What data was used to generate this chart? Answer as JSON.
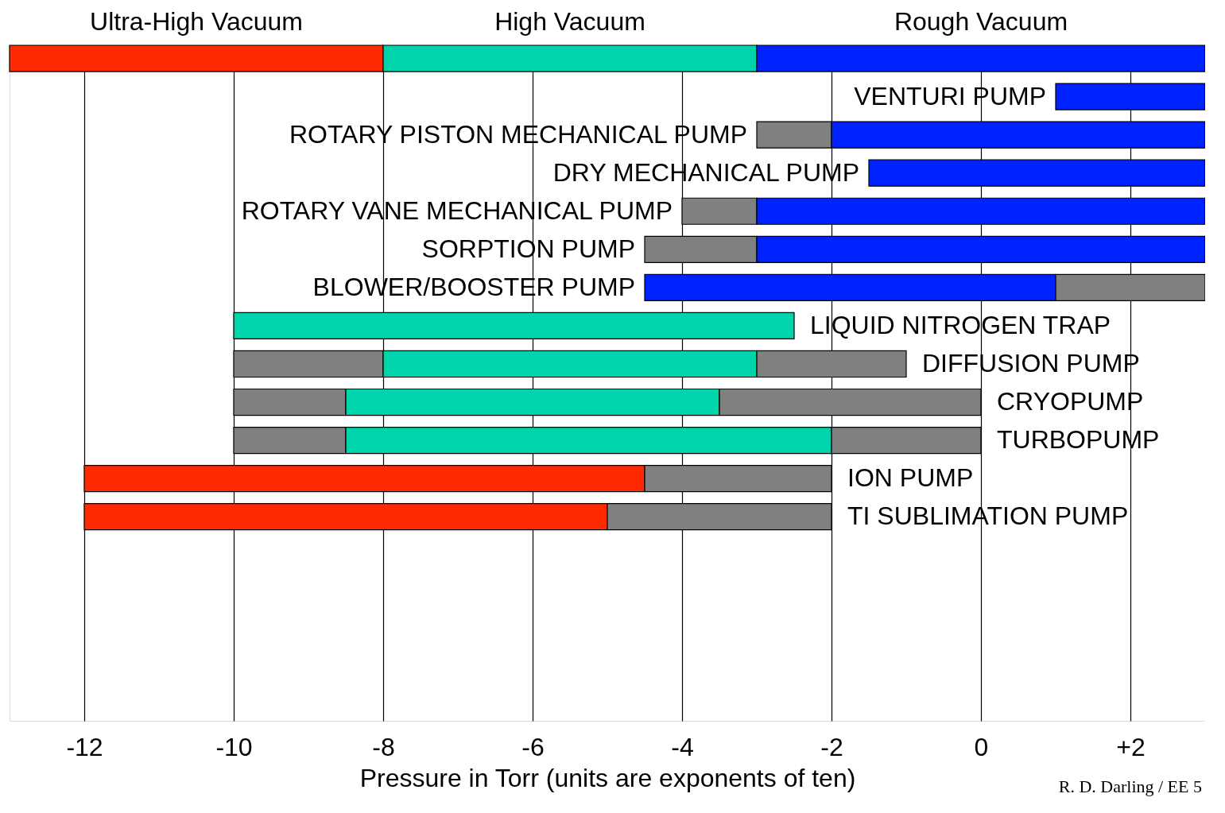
{
  "chart_data": {
    "type": "bar",
    "orientation": "horizontal",
    "xlabel": "Pressure in Torr (units are exponents of ten)",
    "categories": [
      null,
      "VENTURI PUMP",
      "ROTARY PISTON MECHANICAL PUMP",
      "DRY MECHANICAL PUMP",
      "ROTARY VANE MECHANICAL PUMP",
      "SORPTION PUMP",
      "BLOWER/BOOSTER PUMP",
      "LIQUID NITROGEN TRAP",
      "DIFFUSION PUMP",
      "CRYOPUMP",
      "TURBOPUMP",
      "ION PUMP",
      "TI SUBLIMATION PUMP",
      null,
      null,
      null,
      null,
      null
    ],
    "series": [
      {
        "base": [
          -13,
          1,
          -3,
          -1.5,
          -4,
          -4.5,
          -4.5,
          -10,
          -10,
          -10,
          -10,
          -12,
          -12,
          null,
          null,
          null,
          null,
          null
        ],
        "values": [
          5,
          2,
          1,
          4.5,
          1,
          1.5,
          5.5,
          7.5,
          2,
          1.5,
          1.5,
          7.5,
          7,
          null,
          null,
          null,
          null,
          null
        ],
        "colors": [
          "#ff2a00",
          "#0022ff",
          "#808080",
          "#0022ff",
          "#808080",
          "#808080",
          "#0022ff",
          "#00d4aa",
          "#808080",
          "#808080",
          "#808080",
          "#ff2a00",
          "#ff2a00",
          null,
          null,
          null,
          null,
          null
        ]
      },
      {
        "base": [
          -8,
          null,
          -2,
          null,
          -3,
          -3,
          1,
          null,
          -8,
          -8.5,
          -8.5,
          -4.5,
          -5,
          null,
          null,
          null,
          null,
          null
        ],
        "values": [
          5,
          null,
          5,
          null,
          6,
          6,
          2,
          null,
          5,
          5,
          6.5,
          2.5,
          3,
          null,
          null,
          null,
          null,
          null
        ],
        "colors": [
          "#00d4aa",
          null,
          "#0022ff",
          null,
          "#0022ff",
          "#0022ff",
          "#808080",
          null,
          "#00d4aa",
          "#00d4aa",
          "#00d4aa",
          "#808080",
          "#808080",
          null,
          null,
          null,
          null,
          null
        ]
      },
      {
        "base": [
          -3,
          null,
          null,
          null,
          null,
          null,
          null,
          null,
          -3,
          -3.5,
          -2,
          null,
          null,
          null,
          null,
          null,
          null,
          null
        ],
        "values": [
          6,
          null,
          null,
          null,
          null,
          null,
          null,
          null,
          2,
          3.5,
          2,
          null,
          null,
          null,
          null,
          null,
          null,
          null
        ],
        "colors": [
          "#0022ff",
          null,
          null,
          null,
          null,
          null,
          null,
          null,
          "#808080",
          "#808080",
          "#808080",
          null,
          null,
          null,
          null,
          null,
          null,
          null
        ]
      }
    ],
    "xlim": [
      -13,
      3
    ],
    "xticks": [
      -12,
      -10,
      -8,
      -6,
      -4,
      -2,
      0,
      {
        "value": 2,
        "label": "+2"
      }
    ],
    "grid": "x",
    "tick_labels": "x",
    "annotations": [
      "Ultra-High Vacuum",
      "High Vacuum",
      "Rough Vacuum",
      "R. D. Darling / EE 5"
    ]
  }
}
